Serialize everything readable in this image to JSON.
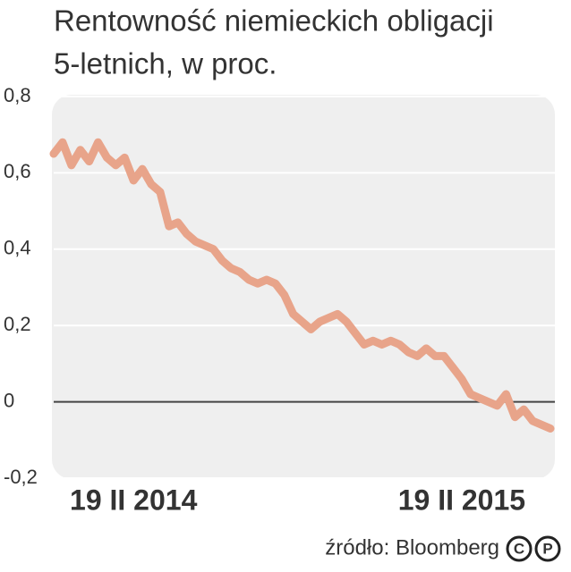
{
  "chart_data": {
    "type": "line",
    "title": [
      "Rentowność niemieckich obligacji",
      "5-letnich, w proc."
    ],
    "source": "źródło: Bloomberg",
    "logo": [
      "C",
      "P"
    ],
    "categories": [
      null,
      null,
      null,
      null,
      null,
      null,
      null,
      null,
      null,
      "19 II 2014",
      null,
      null,
      null,
      null,
      null,
      null,
      null,
      null,
      null,
      null,
      null,
      null,
      null,
      null,
      null,
      null,
      null,
      null,
      null,
      null,
      null,
      null,
      null,
      null,
      null,
      null,
      null,
      null,
      null,
      null,
      null,
      null,
      null,
      null,
      null,
      null,
      "19 II 2015",
      null,
      null,
      null,
      null,
      null,
      null,
      null,
      null,
      null,
      null
    ],
    "series": [
      {
        "name": "Rentowność",
        "color": "#e8a48a",
        "values": [
          0.65,
          0.68,
          0.62,
          0.66,
          0.63,
          0.68,
          0.64,
          0.62,
          0.64,
          0.58,
          0.61,
          0.57,
          0.55,
          0.46,
          0.47,
          0.44,
          0.42,
          0.41,
          0.4,
          0.37,
          0.35,
          0.34,
          0.32,
          0.31,
          0.32,
          0.31,
          0.28,
          0.23,
          0.21,
          0.19,
          0.21,
          0.22,
          0.23,
          0.21,
          0.18,
          0.15,
          0.16,
          0.15,
          0.16,
          0.15,
          0.13,
          0.12,
          0.14,
          0.12,
          0.12,
          0.09,
          0.06,
          0.02,
          0.01,
          0.0,
          -0.01,
          0.02,
          -0.04,
          -0.02,
          -0.05,
          -0.06,
          -0.07
        ]
      }
    ],
    "ylim": [
      -0.2,
      0.8
    ],
    "yticks": [
      {
        "value": -0.2,
        "label": "-0,2"
      },
      0,
      {
        "value": 0.2,
        "label": "0,2"
      },
      {
        "value": 0.4,
        "label": "0,4"
      },
      {
        "value": 0.6,
        "label": "0,6"
      },
      {
        "value": 0.8,
        "label": "0,8"
      }
    ],
    "grid": true
  }
}
